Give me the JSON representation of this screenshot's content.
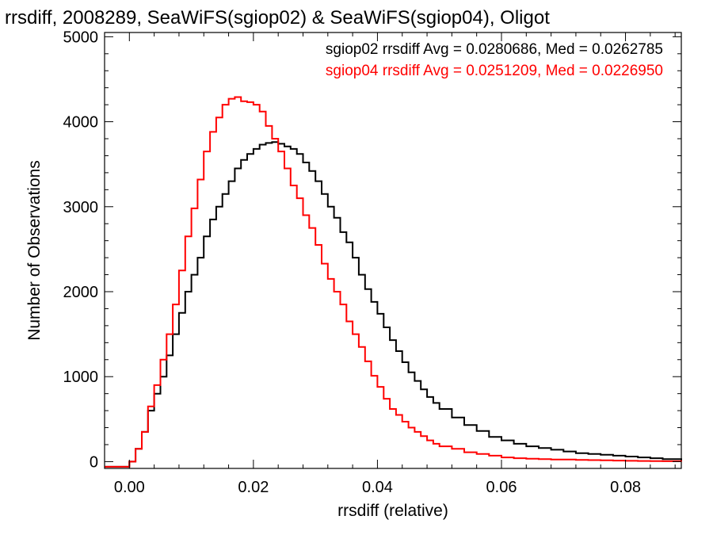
{
  "chart_data": {
    "type": "line",
    "title": "rrsdiff, 2008289, SeaWiFS(sgiop02) & SeaWiFS(sgiop04), Oligot",
    "xlabel": "rrsdiff (relative)",
    "ylabel": "Number of Observations",
    "xlim": [
      -0.004,
      0.089
    ],
    "ylim": [
      -80,
      5050
    ],
    "xticks": [
      0.0,
      0.02,
      0.04,
      0.06,
      0.08
    ],
    "xtick_labels": [
      "0.00",
      "0.02",
      "0.04",
      "0.06",
      "0.08"
    ],
    "yticks": [
      0,
      1000,
      2000,
      3000,
      4000,
      5000
    ],
    "ytick_labels": [
      "0",
      "1000",
      "2000",
      "3000",
      "4000",
      "5000"
    ],
    "grid": false,
    "annotations": [
      {
        "text": "sgiop02 rrsdiff Avg = 0.0280686, Med = 0.0262785",
        "color": "#000000"
      },
      {
        "text": "sgiop04 rrsdiff Avg = 0.0251209, Med = 0.0226950",
        "color": "#ff0000"
      }
    ],
    "series": [
      {
        "color": "#000000",
        "x": [
          -0.004,
          0.0,
          0.001,
          0.002,
          0.003,
          0.004,
          0.005,
          0.006,
          0.007,
          0.008,
          0.009,
          0.01,
          0.011,
          0.012,
          0.013,
          0.014,
          0.015,
          0.016,
          0.017,
          0.018,
          0.019,
          0.02,
          0.021,
          0.022,
          0.023,
          0.024,
          0.025,
          0.026,
          0.027,
          0.028,
          0.029,
          0.03,
          0.031,
          0.032,
          0.033,
          0.034,
          0.035,
          0.036,
          0.037,
          0.038,
          0.039,
          0.04,
          0.041,
          0.042,
          0.043,
          0.044,
          0.045,
          0.046,
          0.047,
          0.048,
          0.049,
          0.05,
          0.052,
          0.054,
          0.056,
          0.058,
          0.06,
          0.062,
          0.064,
          0.066,
          0.068,
          0.07,
          0.072,
          0.074,
          0.076,
          0.078,
          0.08,
          0.082,
          0.084,
          0.086,
          0.089
        ],
        "values": [
          -60,
          0,
          150,
          350,
          600,
          800,
          1000,
          1250,
          1500,
          1750,
          2000,
          2200,
          2400,
          2650,
          2850,
          3000,
          3150,
          3300,
          3450,
          3550,
          3620,
          3680,
          3730,
          3750,
          3760,
          3740,
          3710,
          3680,
          3620,
          3520,
          3420,
          3300,
          3150,
          3000,
          2870,
          2700,
          2580,
          2400,
          2200,
          2030,
          1880,
          1740,
          1580,
          1430,
          1300,
          1170,
          1050,
          950,
          850,
          760,
          690,
          620,
          520,
          430,
          360,
          290,
          250,
          210,
          180,
          160,
          140,
          120,
          100,
          90,
          80,
          70,
          60,
          50,
          40,
          30,
          0
        ]
      },
      {
        "color": "#ff0000",
        "x": [
          -0.004,
          0.0,
          0.001,
          0.002,
          0.003,
          0.004,
          0.005,
          0.006,
          0.007,
          0.008,
          0.009,
          0.01,
          0.011,
          0.012,
          0.013,
          0.014,
          0.015,
          0.016,
          0.017,
          0.018,
          0.019,
          0.02,
          0.021,
          0.022,
          0.023,
          0.024,
          0.025,
          0.026,
          0.027,
          0.028,
          0.029,
          0.03,
          0.031,
          0.032,
          0.033,
          0.034,
          0.035,
          0.036,
          0.037,
          0.038,
          0.039,
          0.04,
          0.041,
          0.042,
          0.043,
          0.044,
          0.045,
          0.046,
          0.047,
          0.048,
          0.049,
          0.05,
          0.052,
          0.054,
          0.056,
          0.058,
          0.06,
          0.062,
          0.064,
          0.066,
          0.068,
          0.07,
          0.072,
          0.074,
          0.076,
          0.078,
          0.08,
          0.082,
          0.084,
          0.086,
          0.089
        ],
        "values": [
          -60,
          0,
          150,
          350,
          650,
          900,
          1200,
          1500,
          1850,
          2250,
          2650,
          2980,
          3320,
          3650,
          3880,
          4050,
          4200,
          4270,
          4290,
          4240,
          4230,
          4200,
          4120,
          3950,
          3800,
          3650,
          3450,
          3250,
          3100,
          2900,
          2750,
          2550,
          2330,
          2150,
          2000,
          1850,
          1650,
          1500,
          1350,
          1180,
          1010,
          880,
          740,
          620,
          550,
          470,
          400,
          350,
          300,
          250,
          210,
          180,
          150,
          110,
          90,
          70,
          50,
          40,
          35,
          30,
          25,
          25,
          20,
          18,
          15,
          12,
          10,
          8,
          6,
          5,
          0
        ]
      }
    ]
  }
}
